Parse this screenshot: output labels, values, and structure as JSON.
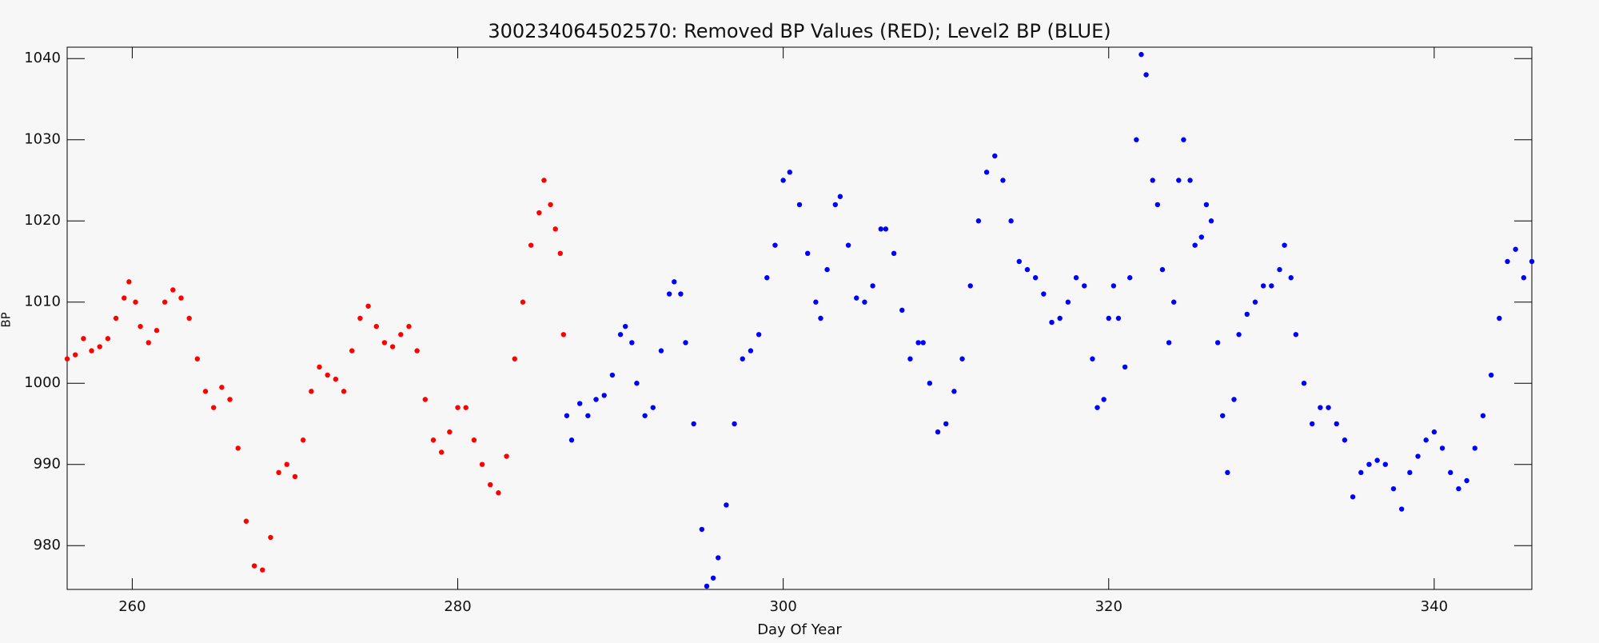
{
  "chart_data": {
    "type": "scatter",
    "title": "300234064502570: Removed BP Values (RED); Level2 BP (BLUE)",
    "x_label": "Day Of Year",
    "y_label": "BP",
    "xlim": [
      256,
      346
    ],
    "ylim": [
      974.6,
      1041.4
    ],
    "xticks": [
      260,
      280,
      300,
      320,
      340
    ],
    "yticks": [
      980,
      990,
      1000,
      1010,
      1020,
      1030,
      1040
    ],
    "series": [
      {
        "color": "#ff0000",
        "x": [
          256,
          256.5,
          257,
          257.5,
          258,
          258.5,
          259,
          259.5,
          259.8,
          260.2,
          260.5,
          261,
          261.5,
          262,
          262.5,
          263,
          263.5,
          264,
          264.5,
          265,
          265.5,
          266,
          266.5,
          267,
          267.5,
          268,
          268.5,
          269,
          269.5,
          270,
          270.5,
          271,
          271.5,
          272,
          272.5,
          273,
          273.5,
          274,
          274.5,
          275,
          275.5,
          276,
          276.5,
          277,
          277.5,
          278,
          278.5,
          279,
          279.5,
          280,
          280.5,
          281,
          281.5,
          282,
          282.5,
          283,
          283.5,
          284,
          284.5,
          285,
          285.3,
          285.7,
          286,
          286.3,
          286.5
        ],
        "values": [
          1003,
          1003.5,
          1005.5,
          1004,
          1004.5,
          1005.5,
          1008,
          1010.5,
          1012.5,
          1010,
          1007,
          1005,
          1006.5,
          1010,
          1011.5,
          1010.5,
          1008,
          1003,
          999,
          997,
          999.5,
          998,
          992,
          983,
          977.5,
          977,
          981,
          989,
          990,
          988.5,
          993,
          999,
          1002,
          1001,
          1000.5,
          999,
          1004,
          1008,
          1009.5,
          1007,
          1005,
          1004.5,
          1006,
          1007,
          1004,
          998,
          993,
          991.5,
          994,
          997,
          997,
          993,
          990,
          987.5,
          986.5,
          991,
          1003,
          1010,
          1017,
          1021,
          1025,
          1022,
          1019,
          1016,
          1006
        ]
      },
      {
        "color": "#0000ff",
        "x": [
          286.7,
          287,
          287.5,
          288,
          288.5,
          289,
          289.5,
          290,
          290.3,
          290.7,
          291,
          291.5,
          292,
          292.5,
          293,
          293.3,
          293.7,
          294,
          294.5,
          295,
          295.3,
          295.7,
          296,
          296.5,
          297,
          297.5,
          298,
          298.5,
          299,
          299.5,
          300,
          300.4,
          301,
          301.5,
          302,
          302.3,
          302.7,
          303.2,
          303.5,
          304,
          304.5,
          305,
          305.5,
          306,
          306.3,
          306.8,
          307.3,
          307.8,
          308.3,
          308.6,
          309,
          309.5,
          310,
          310.5,
          311,
          311.5,
          312,
          312.5,
          313,
          313.5,
          314,
          314.5,
          315,
          315.5,
          316,
          316.5,
          317,
          317.5,
          318,
          318.5,
          319,
          319.3,
          319.7,
          320,
          320.3,
          320.6,
          321,
          321.3,
          321.7,
          322,
          322.3,
          322.7,
          323,
          323.3,
          323.7,
          324,
          324.3,
          324.6,
          325,
          325.3,
          325.7,
          326,
          326.3,
          326.7,
          327,
          327.3,
          327.7,
          328,
          328.5,
          329,
          329.5,
          330,
          330.5,
          330.8,
          331.2,
          331.5,
          332,
          332.5,
          333,
          333.5,
          334,
          334.5,
          335,
          335.5,
          336,
          336.5,
          337,
          337.5,
          338,
          338.5,
          339,
          339.5,
          340,
          340.5,
          341,
          341.5,
          342,
          342.5,
          343,
          343.5,
          344,
          344.5,
          345,
          345.5,
          346
        ],
        "values": [
          996,
          993,
          997.5,
          996,
          998,
          998.5,
          1001,
          1006,
          1007,
          1005,
          1000,
          996,
          997,
          1004,
          1011,
          1012.5,
          1011,
          1005,
          995,
          982,
          975,
          976,
          978.5,
          985,
          995,
          1003,
          1004,
          1006,
          1013,
          1017,
          1025,
          1026,
          1022,
          1016,
          1010,
          1008,
          1014,
          1022,
          1023,
          1017,
          1010.5,
          1010,
          1012,
          1019,
          1019,
          1016,
          1009,
          1003,
          1005,
          1005,
          1000,
          994,
          995,
          999,
          1003,
          1012,
          1020,
          1026,
          1028,
          1025,
          1020,
          1015,
          1014,
          1013,
          1011,
          1007.5,
          1008,
          1010,
          1013,
          1012,
          1003,
          997,
          998,
          1008,
          1012,
          1008,
          1002,
          1013,
          1030,
          1040.5,
          1038,
          1025,
          1022,
          1014,
          1005,
          1010,
          1025,
          1030,
          1025,
          1017,
          1018,
          1022,
          1020,
          1005,
          996,
          989,
          998,
          1006,
          1008.5,
          1010,
          1012,
          1012,
          1014,
          1017,
          1013,
          1006,
          1000,
          995,
          997,
          997,
          995,
          993,
          986,
          989,
          990,
          990.5,
          990,
          987,
          984.5,
          989,
          991,
          993,
          994,
          992,
          989,
          987,
          988,
          992,
          996,
          1001,
          1008,
          1015,
          1016.5,
          1013,
          1015
        ]
      }
    ]
  }
}
